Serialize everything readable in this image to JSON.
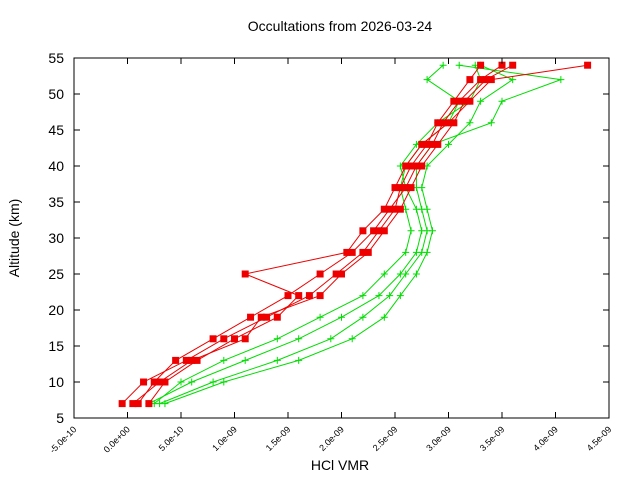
{
  "chart_data": {
    "type": "line",
    "title": "Occultations from 2026-03-24",
    "xlabel": "HCl VMR",
    "ylabel": "Altitude (km)",
    "xlim": [
      -5e-10,
      4.5e-09
    ],
    "ylim": [
      5,
      55
    ],
    "xticks": [
      {
        "value": -5e-10,
        "label": "-5.0e-10"
      },
      {
        "value": 0,
        "label": "0.0e+00"
      },
      {
        "value": 5e-10,
        "label": "5.0e-10"
      },
      {
        "value": 1e-09,
        "label": "1.0e-09"
      },
      {
        "value": 1.5e-09,
        "label": "1.5e-09"
      },
      {
        "value": 2e-09,
        "label": "2.0e-09"
      },
      {
        "value": 2.5e-09,
        "label": "2.5e-09"
      },
      {
        "value": 3e-09,
        "label": "3.0e-09"
      },
      {
        "value": 3.5e-09,
        "label": "3.5e-09"
      },
      {
        "value": 4e-09,
        "label": "4.0e-09"
      },
      {
        "value": 4.5e-09,
        "label": "4.5e-09"
      }
    ],
    "yticks": [
      5,
      10,
      15,
      20,
      25,
      30,
      35,
      40,
      45,
      50,
      55
    ],
    "grid": false,
    "series": [
      {
        "color": "#00dd00",
        "marker": "plus",
        "x": [
          2e-10,
          6e-10,
          1.1e-09,
          1.6e-09,
          2e-09,
          2.35e-09,
          2.55e-09,
          2.7e-09,
          2.75e-09,
          2.7e-09,
          2.6e-09,
          2.55e-09,
          2.7e-09,
          2.9e-09,
          3.2e-09,
          3.3e-09,
          3.25e-09
        ],
        "values": [
          7,
          10,
          13,
          16,
          19,
          22,
          25,
          28,
          31,
          34,
          37,
          40,
          43,
          46,
          49,
          52,
          54
        ]
      },
      {
        "color": "#00dd00",
        "marker": "plus",
        "x": [
          3e-10,
          8e-10,
          1.4e-09,
          1.9e-09,
          2.2e-09,
          2.45e-09,
          2.6e-09,
          2.75e-09,
          2.8e-09,
          2.75e-09,
          2.7e-09,
          2.7e-09,
          2.85e-09,
          3.4e-09,
          3.5e-09,
          4.05e-09,
          3.1e-09
        ],
        "values": [
          7,
          10,
          13,
          16,
          19,
          22,
          25,
          28,
          31,
          34,
          37,
          40,
          43,
          46,
          49,
          52,
          54
        ]
      },
      {
        "color": "#00dd00",
        "marker": "plus",
        "x": [
          2.5e-10,
          5e-10,
          9e-10,
          1.4e-09,
          1.8e-09,
          2.2e-09,
          2.4e-09,
          2.6e-09,
          2.65e-09,
          2.6e-09,
          2.55e-09,
          2.6e-09,
          2.75e-09,
          3e-09,
          3.1e-09,
          2.8e-09,
          2.95e-09
        ],
        "values": [
          7,
          10,
          13,
          16,
          19,
          22,
          25,
          28,
          31,
          34,
          37,
          40,
          43,
          46,
          49,
          52,
          54
        ]
      },
      {
        "color": "#00dd00",
        "marker": "plus",
        "x": [
          3.5e-10,
          9e-10,
          1.6e-09,
          2.1e-09,
          2.4e-09,
          2.55e-09,
          2.7e-09,
          2.8e-09,
          2.85e-09,
          2.8e-09,
          2.75e-09,
          2.8e-09,
          3e-09,
          3.2e-09,
          3.3e-09,
          3.6e-09,
          3.3e-09
        ],
        "values": [
          7,
          10,
          13,
          16,
          19,
          22,
          25,
          28,
          31,
          34,
          37,
          40,
          43,
          46,
          49,
          52,
          54
        ]
      },
      {
        "color": "#ee0000",
        "marker": "square",
        "x": [
          1e-10,
          2.5e-10,
          4.5e-10,
          8e-10,
          1.15e-09,
          1.5e-09,
          1.8e-09,
          2.1e-09,
          2.3e-09,
          2.45e-09,
          2.6e-09,
          2.7e-09,
          2.85e-09,
          2.95e-09,
          3.1e-09,
          3.3e-09,
          3.5e-09
        ],
        "values": [
          7,
          10,
          13,
          16,
          19,
          22,
          25,
          28,
          31,
          34,
          37,
          40,
          43,
          46,
          49,
          52,
          54
        ]
      },
      {
        "color": "#ee0000",
        "marker": "square",
        "x": [
          -5e-11,
          1.5e-10,
          5.5e-10,
          9e-10,
          1.3e-09,
          1.7e-09,
          1.95e-09,
          2.2e-09,
          2.35e-09,
          2.5e-09,
          2.55e-09,
          2.65e-09,
          2.8e-09,
          2.9e-09,
          3.05e-09,
          3.2e-09,
          3.3e-09
        ],
        "values": [
          7,
          10,
          13,
          16,
          19,
          22,
          25,
          28,
          31,
          34,
          37,
          40,
          43,
          46,
          49,
          52,
          54
        ]
      },
      {
        "color": "#ee0000",
        "marker": "square",
        "x": [
          2e-10,
          3.5e-10,
          6.5e-10,
          1e-09,
          1.4e-09,
          1.6e-09,
          1.1e-09,
          2.05e-09,
          2.2e-09,
          2.4e-09,
          2.5e-09,
          2.6e-09,
          2.75e-09,
          3e-09,
          3.2e-09,
          3.4e-09,
          4.3e-09
        ],
        "values": [
          7,
          10,
          13,
          16,
          19,
          22,
          25,
          28,
          31,
          34,
          37,
          40,
          43,
          46,
          49,
          52,
          54
        ]
      },
      {
        "color": "#ee0000",
        "marker": "square",
        "x": [
          5e-11,
          3e-10,
          6e-10,
          1.1e-09,
          1.25e-09,
          1.8e-09,
          2e-09,
          2.25e-09,
          2.4e-09,
          2.55e-09,
          2.65e-09,
          2.75e-09,
          2.9e-09,
          3.05e-09,
          3.15e-09,
          3.35e-09,
          3.6e-09
        ],
        "values": [
          7,
          10,
          13,
          16,
          19,
          22,
          25,
          28,
          31,
          34,
          37,
          40,
          43,
          46,
          49,
          52,
          54
        ]
      }
    ]
  }
}
